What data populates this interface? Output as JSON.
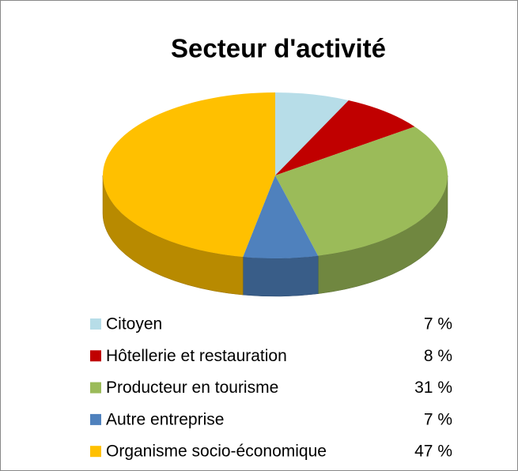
{
  "chart_data": {
    "type": "pie3d",
    "title": "Secteur d'activité",
    "categories": [
      "Citoyen",
      "Hôtellerie et restauration",
      "Producteur en tourisme",
      "Autre entreprise",
      "Organisme socio-économique"
    ],
    "values": [
      7,
      8,
      31,
      7,
      47
    ],
    "value_labels": [
      "7 %",
      "8 %",
      "31 %",
      "7 %",
      "47 %"
    ],
    "colors": [
      "#b7dde8",
      "#c00000",
      "#9bbb59",
      "#4f81bd",
      "#ffc000"
    ],
    "legend": "bottom"
  }
}
